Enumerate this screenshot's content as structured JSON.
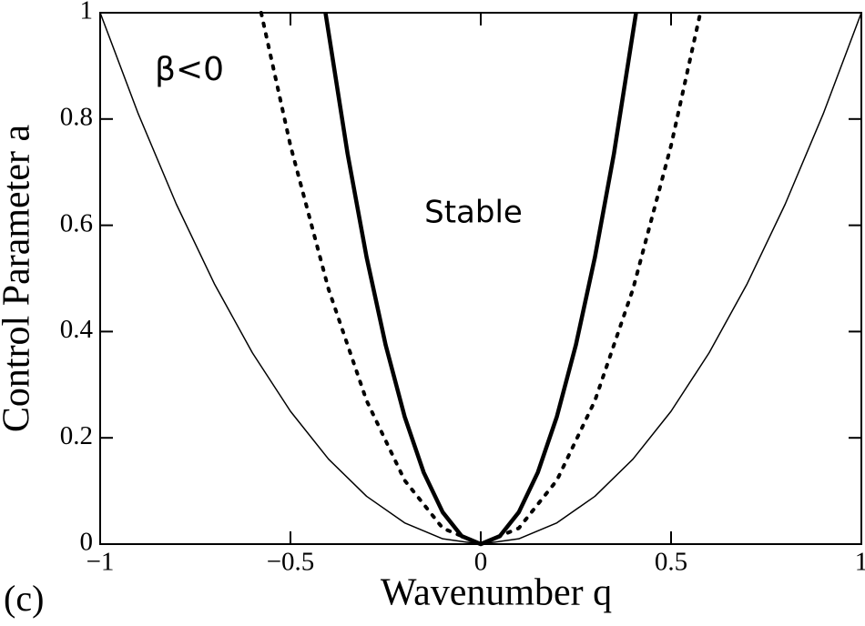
{
  "chart_data": {
    "type": "line",
    "xlabel": "Wavenumber q",
    "ylabel": "Control Parameter a",
    "annotations": [
      "β<0",
      "Stable",
      "(c)"
    ],
    "xlim": [
      -1,
      1
    ],
    "ylim": [
      0,
      1
    ],
    "xticks": [
      {
        "value": -1,
        "label": "−1"
      },
      {
        "value": -0.5,
        "label": "−0.5"
      },
      0,
      0.5,
      1
    ],
    "yticks": [
      0,
      0.2,
      0.4,
      0.6,
      0.8,
      1
    ],
    "series": [
      {
        "color": "#000000",
        "style": "solid",
        "width": 1.5,
        "x": [
          -1,
          -0.9,
          -0.8,
          -0.7,
          -0.6,
          -0.5,
          -0.4,
          -0.3,
          -0.2,
          -0.1,
          0,
          0.1,
          0.2,
          0.3,
          0.4,
          0.5,
          0.6,
          0.7,
          0.8,
          0.9,
          1
        ],
        "values": [
          1,
          0.81,
          0.64,
          0.49,
          0.36,
          0.25,
          0.16,
          0.09,
          0.04,
          0.01,
          0,
          0.01,
          0.04,
          0.09,
          0.16,
          0.25,
          0.36,
          0.49,
          0.64,
          0.81,
          1
        ]
      },
      {
        "color": "#000000",
        "style": "dotted",
        "width": 4,
        "x": [
          -0.577,
          -0.5,
          -0.4,
          -0.3,
          -0.2,
          -0.1,
          0,
          0.1,
          0.2,
          0.3,
          0.4,
          0.5,
          0.577
        ],
        "values": [
          1,
          0.75,
          0.48,
          0.27,
          0.12,
          0.03,
          0,
          0.03,
          0.12,
          0.27,
          0.48,
          0.75,
          1
        ]
      },
      {
        "color": "#000000",
        "style": "solid",
        "width": 4.5,
        "x": [
          -0.408,
          -0.35,
          -0.3,
          -0.25,
          -0.2,
          -0.15,
          -0.1,
          -0.05,
          0,
          0.05,
          0.1,
          0.15,
          0.2,
          0.25,
          0.3,
          0.35,
          0.408
        ],
        "values": [
          1,
          0.735,
          0.54,
          0.375,
          0.24,
          0.135,
          0.06,
          0.015,
          0,
          0.015,
          0.06,
          0.135,
          0.24,
          0.375,
          0.54,
          0.735,
          1
        ]
      }
    ]
  }
}
